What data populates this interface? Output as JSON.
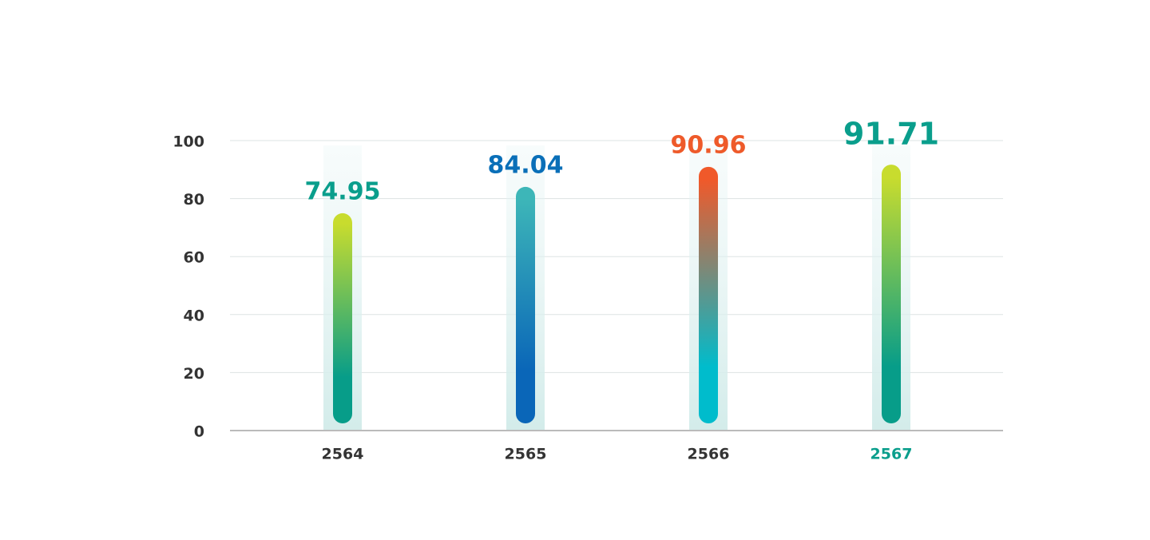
{
  "chart_data": {
    "type": "bar",
    "categories": [
      "2564",
      "2565",
      "2566",
      "2567"
    ],
    "values": [
      74.95,
      84.04,
      90.96,
      91.71
    ],
    "bar_gradients": [
      [
        "#c8dc2e",
        "#079d89"
      ],
      [
        "#3db6b8",
        "#0a66b8"
      ],
      [
        "#f0592a",
        "#00bccc"
      ],
      [
        "#c8dc2e",
        "#079d89"
      ]
    ],
    "value_label_colors": [
      "#0a9e8c",
      "#0a6fb8",
      "#ee5a2a",
      "#0a9e8c"
    ],
    "category_label_colors": [
      "#333333",
      "#333333",
      "#333333",
      "#0a9e8c"
    ],
    "ylim": [
      0,
      100
    ],
    "yticks": [
      0,
      20,
      40,
      60,
      80,
      100
    ],
    "grid": true
  }
}
